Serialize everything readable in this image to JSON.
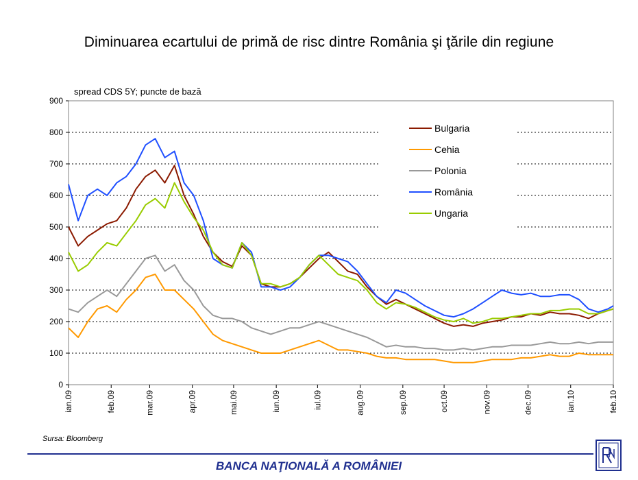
{
  "header": {
    "title": "Diminuarea ecartului de primă de risc dintre România şi ţările din regiune"
  },
  "footer": {
    "source": "Sursa: Bloomberg",
    "institution": "BANCA NAŢIONALĂ A ROMÂNIEI",
    "accent_color": "#1f2f8f"
  },
  "chart_data": {
    "type": "line",
    "ylabel": "spread CDS 5Y; puncte de bază",
    "ylim": [
      0,
      900
    ],
    "yticks": [
      0,
      100,
      200,
      300,
      400,
      500,
      600,
      700,
      800,
      900
    ],
    "xlim": [
      "2009-01-01",
      "2010-02-01"
    ],
    "xticks": [
      "ian.09",
      "feb.09",
      "mar.09",
      "apr.09",
      "mai.09",
      "iun.09",
      "iul.09",
      "aug.09",
      "sep.09",
      "oct.09",
      "nov.09",
      "dec.09",
      "ian.10",
      "feb.10"
    ],
    "grid": "horizontal dotted",
    "legend_position": "top-right",
    "x": [
      "2009-01-01",
      "2009-01-08",
      "2009-01-15",
      "2009-01-22",
      "2009-01-29",
      "2009-02-05",
      "2009-02-12",
      "2009-02-19",
      "2009-02-26",
      "2009-03-05",
      "2009-03-12",
      "2009-03-19",
      "2009-03-26",
      "2009-04-02",
      "2009-04-09",
      "2009-04-16",
      "2009-04-23",
      "2009-04-30",
      "2009-05-07",
      "2009-05-14",
      "2009-05-21",
      "2009-05-28",
      "2009-06-04",
      "2009-06-11",
      "2009-06-18",
      "2009-06-25",
      "2009-07-02",
      "2009-07-09",
      "2009-07-16",
      "2009-07-23",
      "2009-07-30",
      "2009-08-06",
      "2009-08-13",
      "2009-08-20",
      "2009-08-27",
      "2009-09-03",
      "2009-09-10",
      "2009-09-17",
      "2009-09-24",
      "2009-10-01",
      "2009-10-08",
      "2009-10-15",
      "2009-10-22",
      "2009-10-29",
      "2009-11-05",
      "2009-11-12",
      "2009-11-19",
      "2009-11-26",
      "2009-12-03",
      "2009-12-10",
      "2009-12-17",
      "2009-12-24",
      "2009-12-31",
      "2010-01-07",
      "2010-01-14",
      "2010-01-21",
      "2010-01-28",
      "2010-02-01"
    ],
    "series": [
      {
        "name": "Bulgaria",
        "color": "#8b1a00",
        "values": [
          500,
          440,
          470,
          490,
          510,
          520,
          560,
          620,
          660,
          680,
          640,
          695,
          600,
          540,
          470,
          420,
          390,
          375,
          440,
          410,
          320,
          310,
          310,
          320,
          340,
          370,
          400,
          420,
          390,
          360,
          350,
          310,
          280,
          255,
          270,
          255,
          240,
          225,
          210,
          195,
          185,
          190,
          185,
          195,
          200,
          205,
          215,
          215,
          225,
          220,
          230,
          225,
          225,
          220,
          210,
          225,
          235,
          240
        ]
      },
      {
        "name": "Cehia",
        "color": "#ff9900",
        "values": [
          180,
          150,
          200,
          240,
          250,
          230,
          270,
          300,
          340,
          350,
          300,
          300,
          270,
          240,
          200,
          160,
          140,
          130,
          120,
          110,
          100,
          100,
          100,
          110,
          120,
          130,
          140,
          125,
          110,
          110,
          105,
          100,
          90,
          85,
          85,
          80,
          80,
          80,
          80,
          75,
          70,
          70,
          70,
          75,
          80,
          80,
          80,
          85,
          85,
          90,
          95,
          90,
          90,
          100,
          95,
          95,
          95,
          95
        ]
      },
      {
        "name": "Polonia",
        "color": "#999999",
        "values": [
          240,
          230,
          260,
          280,
          300,
          280,
          320,
          360,
          400,
          410,
          360,
          380,
          330,
          300,
          250,
          220,
          210,
          210,
          200,
          180,
          170,
          160,
          170,
          180,
          180,
          190,
          200,
          190,
          180,
          170,
          160,
          150,
          135,
          120,
          125,
          120,
          120,
          115,
          115,
          110,
          110,
          115,
          110,
          115,
          120,
          120,
          125,
          125,
          125,
          130,
          135,
          130,
          130,
          135,
          130,
          135,
          135,
          135
        ]
      },
      {
        "name": "România",
        "color": "#1f4fff",
        "values": [
          635,
          520,
          600,
          620,
          600,
          640,
          660,
          700,
          760,
          780,
          720,
          740,
          640,
          600,
          520,
          400,
          380,
          370,
          450,
          420,
          310,
          310,
          300,
          310,
          340,
          380,
          410,
          410,
          400,
          390,
          360,
          320,
          280,
          260,
          300,
          290,
          270,
          250,
          235,
          220,
          215,
          225,
          240,
          260,
          280,
          300,
          290,
          285,
          290,
          280,
          280,
          285,
          285,
          270,
          240,
          230,
          240,
          250
        ]
      },
      {
        "name": "Ungaria",
        "color": "#99cc00",
        "values": [
          420,
          360,
          380,
          420,
          450,
          440,
          480,
          520,
          570,
          590,
          560,
          640,
          580,
          530,
          490,
          420,
          380,
          370,
          450,
          410,
          320,
          320,
          310,
          320,
          340,
          380,
          410,
          380,
          350,
          340,
          330,
          300,
          260,
          240,
          260,
          255,
          245,
          230,
          215,
          205,
          200,
          210,
          195,
          200,
          210,
          210,
          215,
          220,
          225,
          225,
          235,
          235,
          240,
          240,
          225,
          225,
          235,
          240
        ]
      }
    ]
  }
}
